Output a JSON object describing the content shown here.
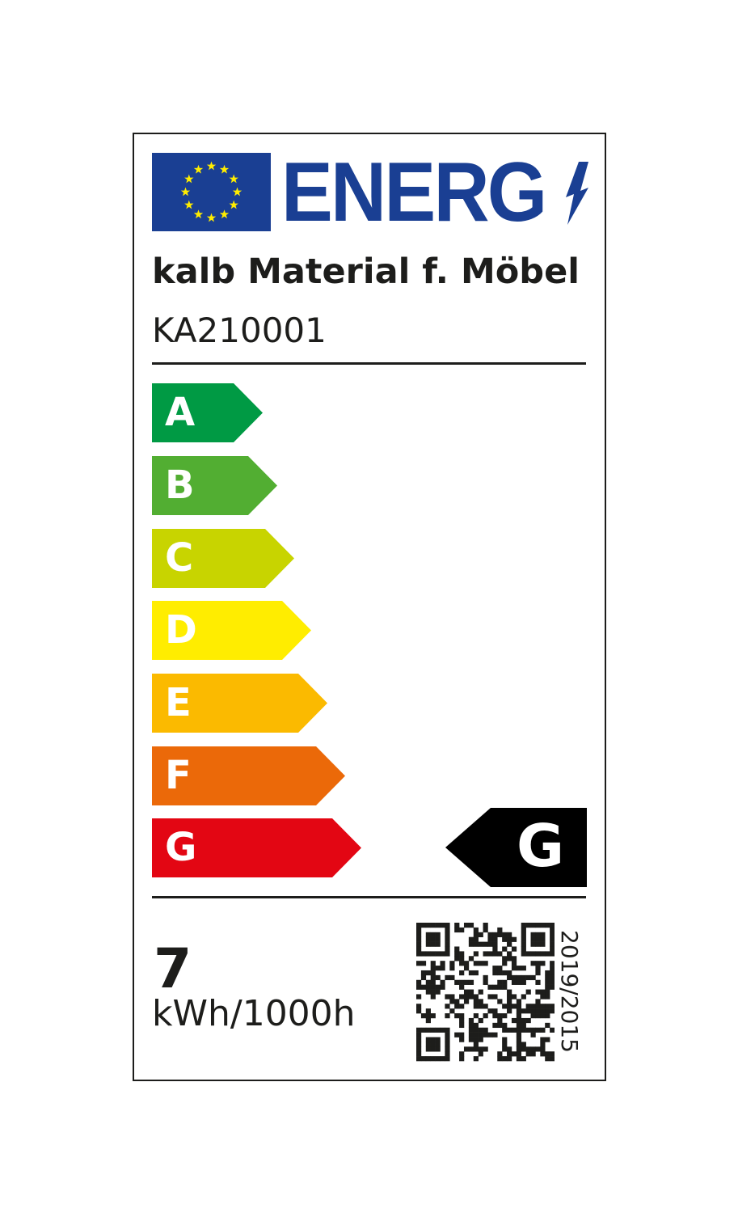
{
  "logo": {
    "text": "ENERG",
    "flag": "eu-flag",
    "colors": {
      "blue": "#1a3f93",
      "star": "#ffed00"
    }
  },
  "supplier": "kalb Material f. Möbel",
  "model": "KA210001",
  "scale": [
    {
      "letter": "A",
      "color": "#009a44"
    },
    {
      "letter": "B",
      "color": "#52ae32"
    },
    {
      "letter": "C",
      "color": "#c8d400"
    },
    {
      "letter": "D",
      "color": "#ffed00"
    },
    {
      "letter": "E",
      "color": "#fbba00"
    },
    {
      "letter": "F",
      "color": "#eb6909"
    },
    {
      "letter": "G",
      "color": "#e30613"
    }
  ],
  "energy_class": "G",
  "consumption": {
    "value": "7",
    "unit": "kWh/1000h"
  },
  "qr": "qr-code-icon",
  "regulation": "2019/2015"
}
